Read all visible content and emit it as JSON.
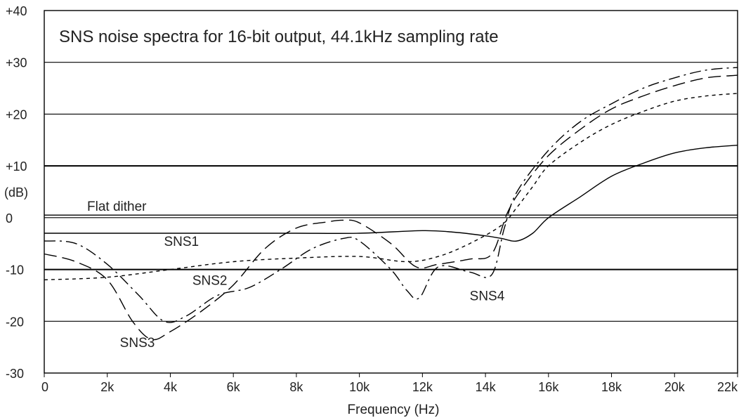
{
  "chart_data": {
    "type": "line",
    "title": "SNS noise spectra for 16-bit output, 44.1kHz sampling rate",
    "xlabel": "Frequency (Hz)",
    "ylabel": "(dB)",
    "xlim": [
      0,
      22000
    ],
    "ylim": [
      -30,
      40
    ],
    "x_ticks": [
      {
        "value": 0,
        "label": "0"
      },
      {
        "value": 2000,
        "label": "2k"
      },
      {
        "value": 4000,
        "label": "4k"
      },
      {
        "value": 6000,
        "label": "6k"
      },
      {
        "value": 8000,
        "label": "8k"
      },
      {
        "value": 10000,
        "label": "10k"
      },
      {
        "value": 12000,
        "label": "12k"
      },
      {
        "value": 14000,
        "label": "14k"
      },
      {
        "value": 16000,
        "label": "16k"
      },
      {
        "value": 18000,
        "label": "18k"
      },
      {
        "value": 20000,
        "label": "20k"
      },
      {
        "value": 22000,
        "label": "22k"
      }
    ],
    "y_ticks": [
      {
        "value": 40,
        "label": "+40"
      },
      {
        "value": 30,
        "label": "+30"
      },
      {
        "value": 20,
        "label": "+20"
      },
      {
        "value": 10,
        "label": "+10"
      },
      {
        "value": 0,
        "label": "0"
      },
      {
        "value": -10,
        "label": "-10"
      },
      {
        "value": -20,
        "label": "-20"
      },
      {
        "value": -30,
        "label": "-30"
      }
    ],
    "grid": true,
    "reference_line": {
      "label": "Flat dither",
      "value": 0.5
    },
    "series": [
      {
        "name": "SNS1",
        "dash": "solid",
        "x": [
          0,
          2000,
          4000,
          6000,
          8000,
          10000,
          12000,
          13000,
          14000,
          14500,
          15000,
          15500,
          16000,
          17000,
          18000,
          19000,
          20000,
          21000,
          22000
        ],
        "y": [
          -3,
          -3,
          -3,
          -3,
          -3,
          -3,
          -2.5,
          -2.8,
          -3.5,
          -4,
          -4.5,
          -3,
          0,
          4,
          8,
          10.5,
          12.5,
          13.5,
          14
        ]
      },
      {
        "name": "SNS2",
        "dash": "short",
        "x": [
          0,
          2000,
          4000,
          6000,
          8000,
          10000,
          11500,
          12500,
          13500,
          14500,
          15000,
          15500,
          16000,
          17000,
          18000,
          19000,
          20000,
          21000,
          22000
        ],
        "y": [
          -12,
          -11.5,
          -10,
          -8.5,
          -7.8,
          -7.5,
          -8.5,
          -7.5,
          -5,
          -1.5,
          2,
          6,
          10,
          14.5,
          18,
          20.5,
          22.5,
          23.5,
          24
        ]
      },
      {
        "name": "SNS3",
        "dash": "long",
        "x": [
          0,
          1000,
          2000,
          2800,
          3400,
          4000,
          5000,
          6000,
          7000,
          8000,
          9000,
          9500,
          10000,
          11000,
          11800,
          12500,
          13500,
          14200,
          14700,
          15200,
          16000,
          17000,
          18000,
          19000,
          20000,
          21000,
          22000
        ],
        "y": [
          -7,
          -8.5,
          -12,
          -20,
          -23.5,
          -22,
          -18,
          -13,
          -6,
          -2,
          -0.8,
          -0.5,
          -1,
          -5,
          -9.5,
          -9,
          -8,
          -7,
          1,
          6,
          12,
          17,
          21,
          23.5,
          25.5,
          27,
          27.5
        ]
      },
      {
        "name": "SNS4",
        "dash": "dashdot",
        "x": [
          0,
          1000,
          2000,
          3000,
          3800,
          4500,
          5500,
          6500,
          7500,
          8500,
          9500,
          10000,
          11000,
          11500,
          11900,
          12500,
          13500,
          14200,
          14600,
          15000,
          16000,
          17000,
          18000,
          19000,
          20000,
          21000,
          22000
        ],
        "y": [
          -4.5,
          -5,
          -9,
          -15,
          -20,
          -19,
          -15,
          -13.5,
          -10,
          -6,
          -4,
          -4.5,
          -10,
          -14,
          -15.5,
          -9.5,
          -10.5,
          -11,
          -2,
          5,
          13,
          18.5,
          22,
          25,
          27,
          28.5,
          29
        ]
      }
    ],
    "annotations": [
      {
        "text": "SNS1",
        "x": 3800,
        "y": -4.5
      },
      {
        "text": "SNS2",
        "x": 4700,
        "y": -12
      },
      {
        "text": "SNS3",
        "x": 2400,
        "y": -24
      },
      {
        "text": "SNS4",
        "x": 13500,
        "y": -15
      }
    ]
  }
}
